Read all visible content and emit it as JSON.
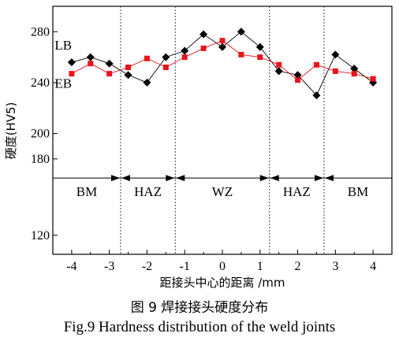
{
  "chart_data": {
    "type": "line",
    "xlabel": "距接头中心的距离 /mm",
    "ylabel": "硬度(HV5)",
    "xlim": [
      -4.5,
      4.5
    ],
    "ylim": [
      105,
      300
    ],
    "xticks": [
      -4,
      -3,
      -2,
      -1,
      0,
      1,
      2,
      3,
      4
    ],
    "yticks": [
      120,
      180,
      200,
      240,
      280
    ],
    "grid": false,
    "boundaries": [
      -2.7,
      -1.25,
      1.25,
      2.7
    ],
    "zones": [
      {
        "label": "BM",
        "from": -4.5,
        "to": -2.7
      },
      {
        "label": "HAZ",
        "from": -2.7,
        "to": -1.25
      },
      {
        "label": "WZ",
        "from": -1.25,
        "to": 1.25
      },
      {
        "label": "HAZ",
        "from": 1.25,
        "to": 2.7
      },
      {
        "label": "BM",
        "from": 2.7,
        "to": 4.5
      }
    ],
    "series": [
      {
        "name": "LB",
        "color": "#000000",
        "marker": "diamond",
        "x": [
          -4,
          -3.5,
          -3,
          -2.5,
          -2,
          -1.5,
          -1,
          -0.5,
          0,
          0.5,
          1,
          1.5,
          2,
          2.5,
          3,
          3.5,
          4
        ],
        "y": [
          256,
          260,
          255,
          246,
          240,
          260,
          265,
          278,
          268,
          280,
          268,
          249,
          246,
          230,
          262,
          251,
          240
        ]
      },
      {
        "name": "EB",
        "color": "#e8141b",
        "marker": "square",
        "x": [
          -4,
          -3.5,
          -3,
          -2.5,
          -2,
          -1.5,
          -1,
          -0.5,
          0,
          0.5,
          1,
          1.5,
          2,
          2.5,
          3,
          3.5,
          4
        ],
        "y": [
          247,
          255,
          247,
          252,
          259,
          252,
          260,
          267,
          273,
          262,
          260,
          254,
          242,
          254,
          249,
          247,
          243
        ]
      }
    ]
  },
  "caption": {
    "chinese": "图 9   焊接接头硬度分布",
    "english": "Fig.9   Hardness distribution of the weld joints"
  }
}
